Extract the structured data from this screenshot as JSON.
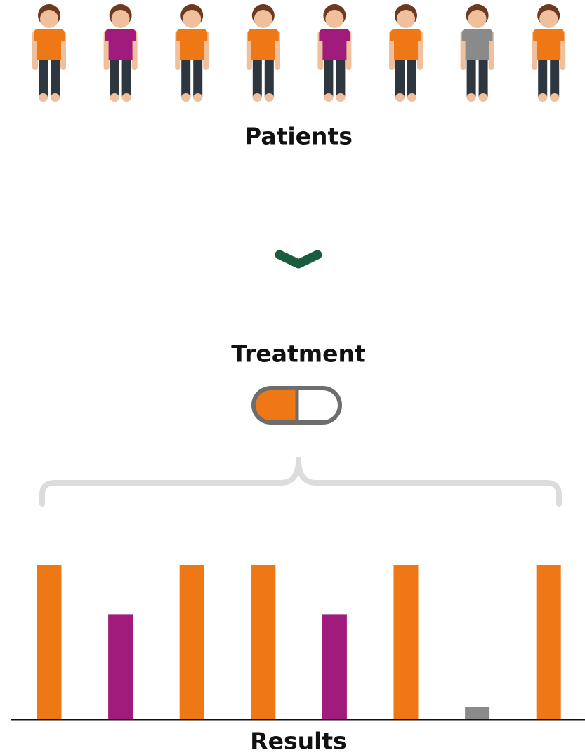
{
  "patients": {
    "label": "Patients",
    "shirt_colors": [
      "#ee7716",
      "#a01b7c",
      "#ee7716",
      "#ee7716",
      "#a01b7c",
      "#ee7716",
      "#8a8a8a",
      "#ee7716"
    ]
  },
  "treatment": {
    "label": "Treatment"
  },
  "results": {
    "label": "Results",
    "values": [
      100,
      68,
      100,
      100,
      68,
      100,
      8,
      100
    ],
    "colors": [
      "#ee7716",
      "#a01b7c",
      "#ee7716",
      "#ee7716",
      "#a01b7c",
      "#ee7716",
      "#8a8a8a",
      "#ee7716"
    ]
  }
}
